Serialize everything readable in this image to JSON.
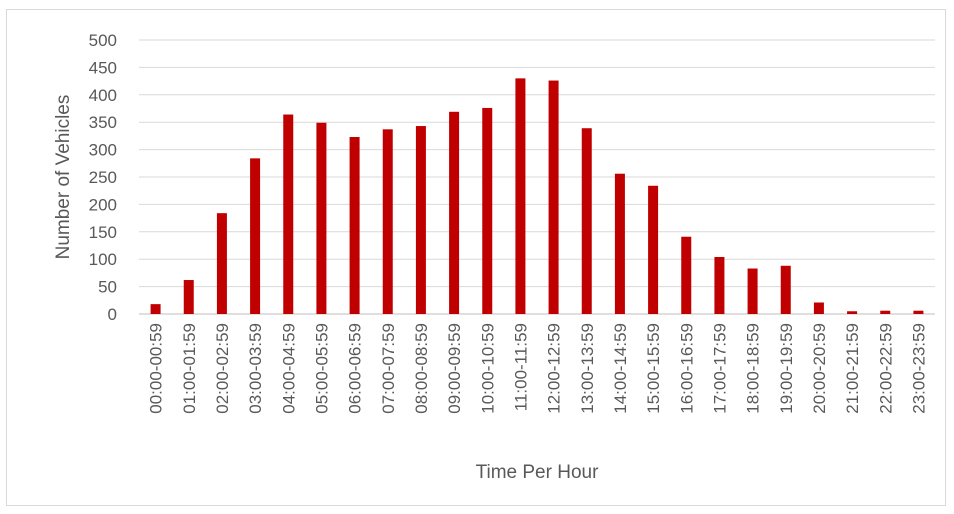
{
  "chart_data": {
    "type": "bar",
    "title": "",
    "xlabel": "Time Per Hour",
    "ylabel": "Number of Vehicles",
    "ylim": [
      0,
      500
    ],
    "yticks": [
      0,
      50,
      100,
      150,
      200,
      250,
      300,
      350,
      400,
      450,
      500
    ],
    "grid": true,
    "legend": "none",
    "bar_color": "#c00000",
    "categories": [
      "00:00-00:59",
      "01:00-01:59",
      "02:00-02:59",
      "03:00-03:59",
      "04:00-04:59",
      "05:00-05:59",
      "06:00-06:59",
      "07:00-07:59",
      "08:00-08:59",
      "09:00-09:59",
      "10:00-10:59",
      "11:00-11:59",
      "12:00-12:59",
      "13:00-13:59",
      "14:00-14:59",
      "15:00-15:59",
      "16:00-16:59",
      "17:00-17:59",
      "18:00-18:59",
      "19:00-19:59",
      "20:00-20:59",
      "21:00-21:59",
      "22:00-22:59",
      "23:00-23:59"
    ],
    "values": [
      18,
      62,
      184,
      284,
      364,
      349,
      323,
      337,
      343,
      369,
      376,
      430,
      426,
      339,
      256,
      234,
      141,
      104,
      83,
      88,
      21,
      5,
      6,
      6
    ]
  }
}
